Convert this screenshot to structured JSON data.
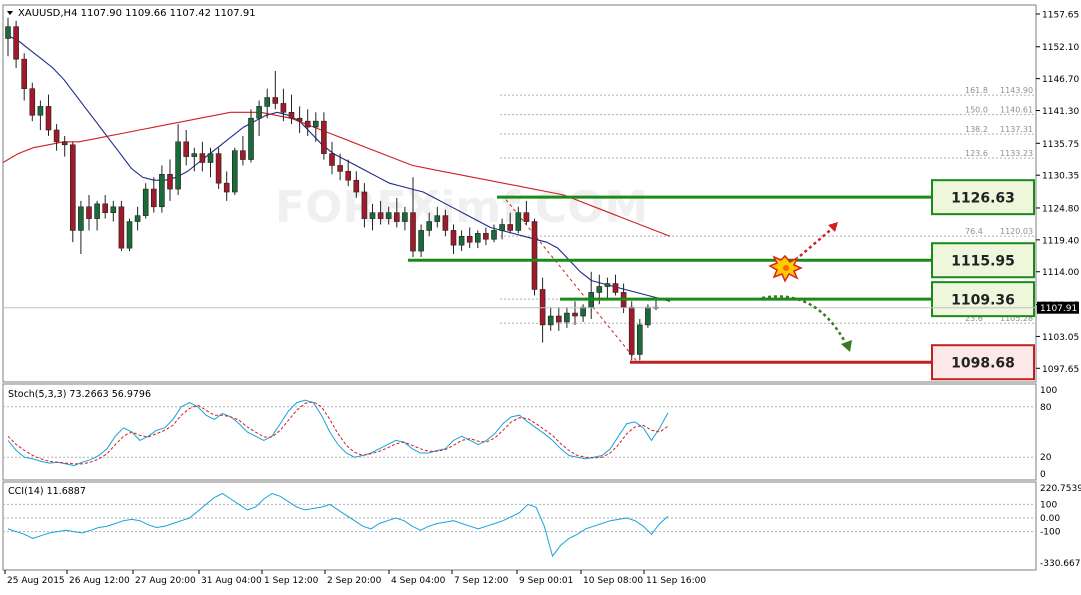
{
  "chart_data": {
    "type": "candlestick",
    "symbol_header": "XAUUSD,H4  1107.90 1109.66 1107.42 1107.91",
    "watermark": "FOREXimf.COM",
    "price_axis": {
      "range": [
        1095.5,
        1159.0
      ],
      "ticks": [
        "1157.65",
        "1152.10",
        "1146.70",
        "1141.30",
        "1135.75",
        "1130.35",
        "1124.80",
        "1119.40",
        "1114.00",
        "1108.45",
        "1103.05",
        "1097.65"
      ],
      "current_price": "1107.91"
    },
    "time_labels": [
      "25 Aug 2015",
      "26 Aug 12:00",
      "27 Aug 20:00",
      "31 Aug 04:00",
      "1 Sep 12:00",
      "2 Sep 20:00",
      "4 Sep 04:00",
      "7 Sep 12:00",
      "9 Sep 00:01",
      "10 Sep 08:00",
      "11 Sep 16:00"
    ],
    "candles": [
      [
        1153.5,
        1157.0,
        1150.5,
        1155.5
      ],
      [
        1155.5,
        1156.5,
        1148.5,
        1150.0
      ],
      [
        1150.0,
        1151.0,
        1143.0,
        1145.0
      ],
      [
        1145.0,
        1146.0,
        1139.5,
        1140.5
      ],
      [
        1140.5,
        1143.0,
        1138.0,
        1142.0
      ],
      [
        1142.0,
        1144.0,
        1137.0,
        1138.0
      ],
      [
        1138.0,
        1139.0,
        1134.5,
        1136.0
      ],
      [
        1136.0,
        1137.0,
        1133.5,
        1135.5
      ],
      [
        1135.5,
        1136.0,
        1119.0,
        1121.0
      ],
      [
        1121.0,
        1126.0,
        1117.0,
        1125.0
      ],
      [
        1125.0,
        1127.0,
        1121.0,
        1123.0
      ],
      [
        1123.0,
        1126.0,
        1121.0,
        1125.5
      ],
      [
        1125.5,
        1127.0,
        1123.0,
        1124.0
      ],
      [
        1124.0,
        1126.0,
        1122.5,
        1125.0
      ],
      [
        1125.0,
        1126.0,
        1117.5,
        1118.0
      ],
      [
        1118.0,
        1123.0,
        1117.5,
        1122.5
      ],
      [
        1122.5,
        1125.0,
        1121.0,
        1123.5
      ],
      [
        1123.5,
        1129.0,
        1123.0,
        1128.0
      ],
      [
        1128.0,
        1130.0,
        1124.0,
        1125.0
      ],
      [
        1125.0,
        1132.0,
        1124.0,
        1130.5
      ],
      [
        1130.5,
        1133.0,
        1126.0,
        1128.0
      ],
      [
        1128.0,
        1139.0,
        1127.0,
        1136.0
      ],
      [
        1136.0,
        1138.0,
        1132.0,
        1133.5
      ],
      [
        1133.5,
        1135.0,
        1131.0,
        1134.0
      ],
      [
        1134.0,
        1136.0,
        1131.0,
        1132.5
      ],
      [
        1132.5,
        1135.0,
        1130.0,
        1134.0
      ],
      [
        1134.0,
        1135.0,
        1128.0,
        1129.0
      ],
      [
        1129.0,
        1131.0,
        1126.0,
        1127.5
      ],
      [
        1127.5,
        1135.0,
        1127.0,
        1134.5
      ],
      [
        1134.5,
        1137.0,
        1132.0,
        1133.0
      ],
      [
        1133.0,
        1141.5,
        1132.5,
        1140.0
      ],
      [
        1140.0,
        1143.0,
        1137.0,
        1142.0
      ],
      [
        1142.0,
        1145.0,
        1140.0,
        1143.5
      ],
      [
        1143.5,
        1148.0,
        1141.5,
        1142.5
      ],
      [
        1142.5,
        1145.0,
        1139.5,
        1141.0
      ],
      [
        1141.0,
        1144.0,
        1139.0,
        1140.0
      ],
      [
        1140.0,
        1142.0,
        1137.5,
        1139.5
      ],
      [
        1139.5,
        1141.5,
        1137.0,
        1138.5
      ],
      [
        1138.5,
        1141.0,
        1136.0,
        1139.5
      ],
      [
        1139.5,
        1141.0,
        1133.0,
        1134.0
      ],
      [
        1134.0,
        1136.0,
        1130.5,
        1132.0
      ],
      [
        1132.0,
        1134.0,
        1129.5,
        1131.0
      ],
      [
        1131.0,
        1133.0,
        1128.5,
        1129.5
      ],
      [
        1129.5,
        1131.0,
        1126.5,
        1127.5
      ],
      [
        1127.5,
        1129.0,
        1121.5,
        1123.0
      ],
      [
        1123.0,
        1125.5,
        1121.0,
        1124.0
      ],
      [
        1124.0,
        1126.0,
        1122.0,
        1123.0
      ],
      [
        1123.0,
        1125.0,
        1122.0,
        1124.0
      ],
      [
        1124.0,
        1126.5,
        1121.5,
        1122.5
      ],
      [
        1122.5,
        1125.0,
        1121.0,
        1124.0
      ],
      [
        1124.0,
        1130.0,
        1116.5,
        1117.5
      ],
      [
        1117.5,
        1122.0,
        1116.5,
        1121.0
      ],
      [
        1121.0,
        1124.0,
        1120.0,
        1122.5
      ],
      [
        1122.5,
        1125.0,
        1121.5,
        1123.5
      ],
      [
        1123.5,
        1124.5,
        1120.0,
        1121.0
      ],
      [
        1121.0,
        1122.0,
        1117.0,
        1118.5
      ],
      [
        1118.5,
        1121.0,
        1117.5,
        1120.0
      ],
      [
        1120.0,
        1121.5,
        1118.0,
        1119.0
      ],
      [
        1119.0,
        1121.0,
        1118.0,
        1120.5
      ],
      [
        1120.5,
        1121.5,
        1118.5,
        1119.5
      ],
      [
        1119.5,
        1122.0,
        1119.0,
        1121.0
      ],
      [
        1121.0,
        1123.0,
        1119.5,
        1122.0
      ],
      [
        1122.0,
        1124.0,
        1120.5,
        1121.0
      ],
      [
        1121.0,
        1125.0,
        1120.5,
        1124.0
      ],
      [
        1124.0,
        1126.0,
        1122.0,
        1122.5
      ],
      [
        1122.5,
        1123.0,
        1110.0,
        1111.0
      ],
      [
        1111.0,
        1113.0,
        1102.0,
        1105.0
      ],
      [
        1105.0,
        1108.0,
        1104.0,
        1106.5
      ],
      [
        1106.5,
        1108.0,
        1104.0,
        1105.5
      ],
      [
        1105.5,
        1108.0,
        1104.5,
        1107.0
      ],
      [
        1107.0,
        1109.0,
        1105.0,
        1106.5
      ],
      [
        1106.5,
        1108.5,
        1105.5,
        1108.0
      ],
      [
        1108.0,
        1114.0,
        1106.0,
        1110.5
      ],
      [
        1110.5,
        1113.5,
        1108.5,
        1111.5
      ],
      [
        1111.5,
        1113.0,
        1109.5,
        1112.0
      ],
      [
        1112.0,
        1113.5,
        1110.0,
        1110.5
      ],
      [
        1110.5,
        1112.0,
        1107.0,
        1108.0
      ],
      [
        1108.0,
        1109.0,
        1099.0,
        1100.0
      ],
      [
        1100.0,
        1106.0,
        1099.0,
        1105.0
      ],
      [
        1105.0,
        1108.5,
        1104.5,
        1108.0
      ],
      [
        1108.0,
        1109.5,
        1107.5,
        1107.9
      ]
    ],
    "moving_averages": [
      {
        "name": "MA fast",
        "color": "#1f2a8a",
        "values": [
          1154,
          1153,
          1151.5,
          1150,
          1148.5,
          1146.5,
          1144,
          1141.5,
          1139,
          1136.5,
          1134,
          1131.5,
          1130,
          1129.5,
          1129.5,
          1130,
          1131,
          1132.5,
          1134,
          1135.5,
          1137,
          1138.5,
          1139.5,
          1140.5,
          1141,
          1140.5,
          1139.5,
          1137.5,
          1135.5,
          1134,
          1133,
          1132,
          1131,
          1130,
          1129,
          1128.5,
          1128,
          1127.5,
          1126.5,
          1125.5,
          1124.5,
          1123.5,
          1122.5,
          1121.5,
          1121,
          1120.5,
          1120,
          1119.5,
          1119,
          1118,
          1116,
          1114,
          1112.5,
          1112,
          1111.5,
          1111,
          1110.5,
          1110,
          1109.5,
          1109.0
        ]
      },
      {
        "name": "MA slow",
        "color": "#d02020",
        "values": [
          1132.5,
          1134,
          1135,
          1135.5,
          1136,
          1136,
          1136.5,
          1137,
          1137.5,
          1138,
          1138.5,
          1139,
          1139.5,
          1140,
          1140.5,
          1141,
          1141,
          1141,
          1140.5,
          1140,
          1139,
          1138,
          1137,
          1136,
          1135,
          1134,
          1133,
          1132,
          1131.5,
          1131,
          1130.5,
          1130,
          1129.5,
          1129,
          1128.5,
          1128,
          1127.5,
          1127,
          1126,
          1125,
          1124,
          1123,
          1122,
          1121,
          1120.0
        ]
      }
    ],
    "fibonacci_levels": [
      {
        "ratio": "161.8",
        "price": "1143.90"
      },
      {
        "ratio": "150.0",
        "price": "1140.61"
      },
      {
        "ratio": "138.2",
        "price": "1137.31"
      },
      {
        "ratio": "123.6",
        "price": "1133.23"
      },
      {
        "ratio": "76.4",
        "price": "1120.03"
      },
      {
        "ratio": "38.2",
        "price": "1109.36"
      },
      {
        "ratio": "23.6",
        "price": "1105.28"
      }
    ],
    "horizontal_levels": [
      {
        "label": "1126.63",
        "price": 1126.63,
        "color": "#1a8a1a"
      },
      {
        "label": "1115.95",
        "price": 1115.95,
        "color": "#1a8a1a"
      },
      {
        "label": "1109.36",
        "price": 1109.36,
        "color": "#1a8a1a"
      },
      {
        "label": "1098.68",
        "price": 1098.68,
        "color": "#c02020"
      }
    ],
    "stochastic": {
      "header": "Stoch(5,3,3) 73.2663 56.9796",
      "axis_ticks": [
        "100",
        "80",
        "20",
        "0"
      ],
      "k": [
        40,
        28,
        20,
        18,
        15,
        13,
        14,
        12,
        10,
        14,
        17,
        22,
        30,
        45,
        55,
        50,
        40,
        45,
        52,
        55,
        65,
        80,
        85,
        80,
        70,
        65,
        72,
        68,
        60,
        50,
        45,
        40,
        45,
        60,
        75,
        85,
        88,
        85,
        70,
        50,
        35,
        25,
        20,
        22,
        25,
        30,
        35,
        40,
        38,
        30,
        25,
        25,
        28,
        30,
        40,
        45,
        40,
        35,
        40,
        48,
        60,
        68,
        70,
        62,
        55,
        48,
        40,
        30,
        22,
        20,
        18,
        20,
        22,
        30,
        45,
        60,
        62,
        55,
        40,
        55,
        73
      ],
      "d": [
        45,
        35,
        28,
        22,
        18,
        15,
        14,
        13,
        12,
        12,
        14,
        18,
        24,
        35,
        45,
        50,
        46,
        44,
        48,
        52,
        58,
        70,
        78,
        82,
        76,
        70,
        70,
        68,
        64,
        56,
        50,
        44,
        44,
        52,
        64,
        76,
        84,
        86,
        80,
        65,
        48,
        34,
        26,
        22,
        24,
        27,
        31,
        36,
        38,
        34,
        30,
        27,
        27,
        29,
        34,
        40,
        42,
        39,
        38,
        43,
        52,
        62,
        67,
        66,
        60,
        53,
        46,
        36,
        28,
        22,
        20,
        19,
        20,
        25,
        35,
        48,
        56,
        58,
        52,
        50,
        57
      ]
    },
    "cci": {
      "header": "CCI(14) 11.6887",
      "axis_ticks": [
        "220.7539",
        "100",
        "0.00",
        "-100",
        "-330.6677"
      ],
      "values": [
        -80,
        -100,
        -120,
        -150,
        -130,
        -110,
        -100,
        -90,
        -100,
        -110,
        -90,
        -70,
        -60,
        -40,
        -20,
        -10,
        -20,
        -50,
        -70,
        -60,
        -40,
        -20,
        0,
        50,
        100,
        150,
        180,
        140,
        100,
        60,
        80,
        140,
        180,
        160,
        120,
        80,
        60,
        70,
        80,
        100,
        60,
        20,
        -20,
        -60,
        -80,
        -40,
        -20,
        0,
        -20,
        -60,
        -90,
        -60,
        -40,
        -30,
        -20,
        -40,
        -60,
        -80,
        -60,
        -40,
        -20,
        10,
        40,
        100,
        80,
        -60,
        -280,
        -200,
        -150,
        -120,
        -80,
        -60,
        -40,
        -20,
        -10,
        0,
        -20,
        -60,
        -120,
        -40,
        12
      ]
    }
  }
}
